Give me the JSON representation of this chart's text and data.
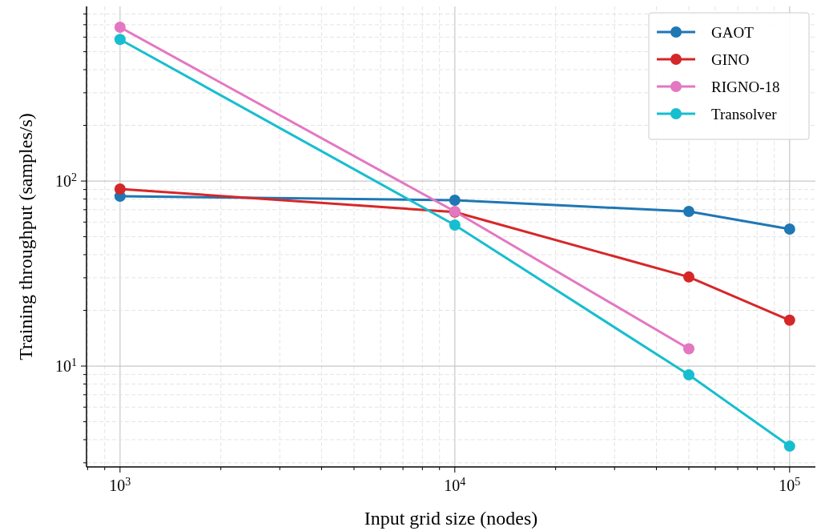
{
  "chart_data": {
    "type": "line",
    "xlabel": "Input grid size (nodes)",
    "ylabel": "Training throughput (samples/s)",
    "log": "xy",
    "grid": true,
    "legend": "top right",
    "marker": "circle",
    "line_style": "solid",
    "x": [
      1000,
      10000,
      50000,
      100000
    ],
    "xlim": [
      794,
      119400
    ],
    "ylim": [
      2.85,
      879
    ],
    "xticks": [
      {
        "value": 1000,
        "label": "10$^{3}$"
      },
      {
        "value": 10000,
        "label": "10$^{4}$"
      },
      {
        "value": 100000,
        "label": "10$^{5}$"
      },
      {
        "value": 800,
        "label": null
      },
      {
        "value": 900,
        "label": null
      },
      {
        "value": 2000,
        "label": null
      },
      {
        "value": 3000,
        "label": null
      },
      {
        "value": 4000,
        "label": null
      },
      {
        "value": 5000,
        "label": null
      },
      {
        "value": 6000,
        "label": null
      },
      {
        "value": 7000,
        "label": null
      },
      {
        "value": 8000,
        "label": null
      },
      {
        "value": 9000,
        "label": null
      },
      {
        "value": 20000,
        "label": null
      },
      {
        "value": 30000,
        "label": null
      },
      {
        "value": 40000,
        "label": null
      },
      {
        "value": 50000,
        "label": null
      },
      {
        "value": 60000,
        "label": null
      },
      {
        "value": 70000,
        "label": null
      },
      {
        "value": 80000,
        "label": null
      },
      {
        "value": 90000,
        "label": null
      }
    ],
    "yticks": [
      {
        "value": 10,
        "label": "10$^{1}$"
      },
      {
        "value": 100,
        "label": "10$^{2}$"
      },
      {
        "value": 3,
        "label": null
      },
      {
        "value": 4,
        "label": null
      },
      {
        "value": 5,
        "label": null
      },
      {
        "value": 6,
        "label": null
      },
      {
        "value": 7,
        "label": null
      },
      {
        "value": 8,
        "label": null
      },
      {
        "value": 9,
        "label": null
      },
      {
        "value": 20,
        "label": null
      },
      {
        "value": 30,
        "label": null
      },
      {
        "value": 40,
        "label": null
      },
      {
        "value": 50,
        "label": null
      },
      {
        "value": 60,
        "label": null
      },
      {
        "value": 70,
        "label": null
      },
      {
        "value": 80,
        "label": null
      },
      {
        "value": 90,
        "label": null
      },
      {
        "value": 200,
        "label": null
      },
      {
        "value": 300,
        "label": null
      },
      {
        "value": 400,
        "label": null
      },
      {
        "value": 500,
        "label": null
      },
      {
        "value": 600,
        "label": null
      },
      {
        "value": 700,
        "label": null
      },
      {
        "value": 800,
        "label": null
      }
    ],
    "series": [
      {
        "name": "GAOT",
        "color": "#1f77b4",
        "values": [
          82.7,
          78.8,
          68.5,
          55
        ]
      },
      {
        "name": "GINO",
        "color": "#d62728",
        "values": [
          90.6,
          68,
          30.3,
          17.7
        ]
      },
      {
        "name": "RIGNO-18",
        "color": "#e377c2",
        "values": [
          678,
          68.5,
          12.4,
          null
        ]
      },
      {
        "name": "Transolver",
        "color": "#17becf",
        "values": [
          583,
          57.8,
          8.96,
          3.69
        ]
      }
    ]
  }
}
